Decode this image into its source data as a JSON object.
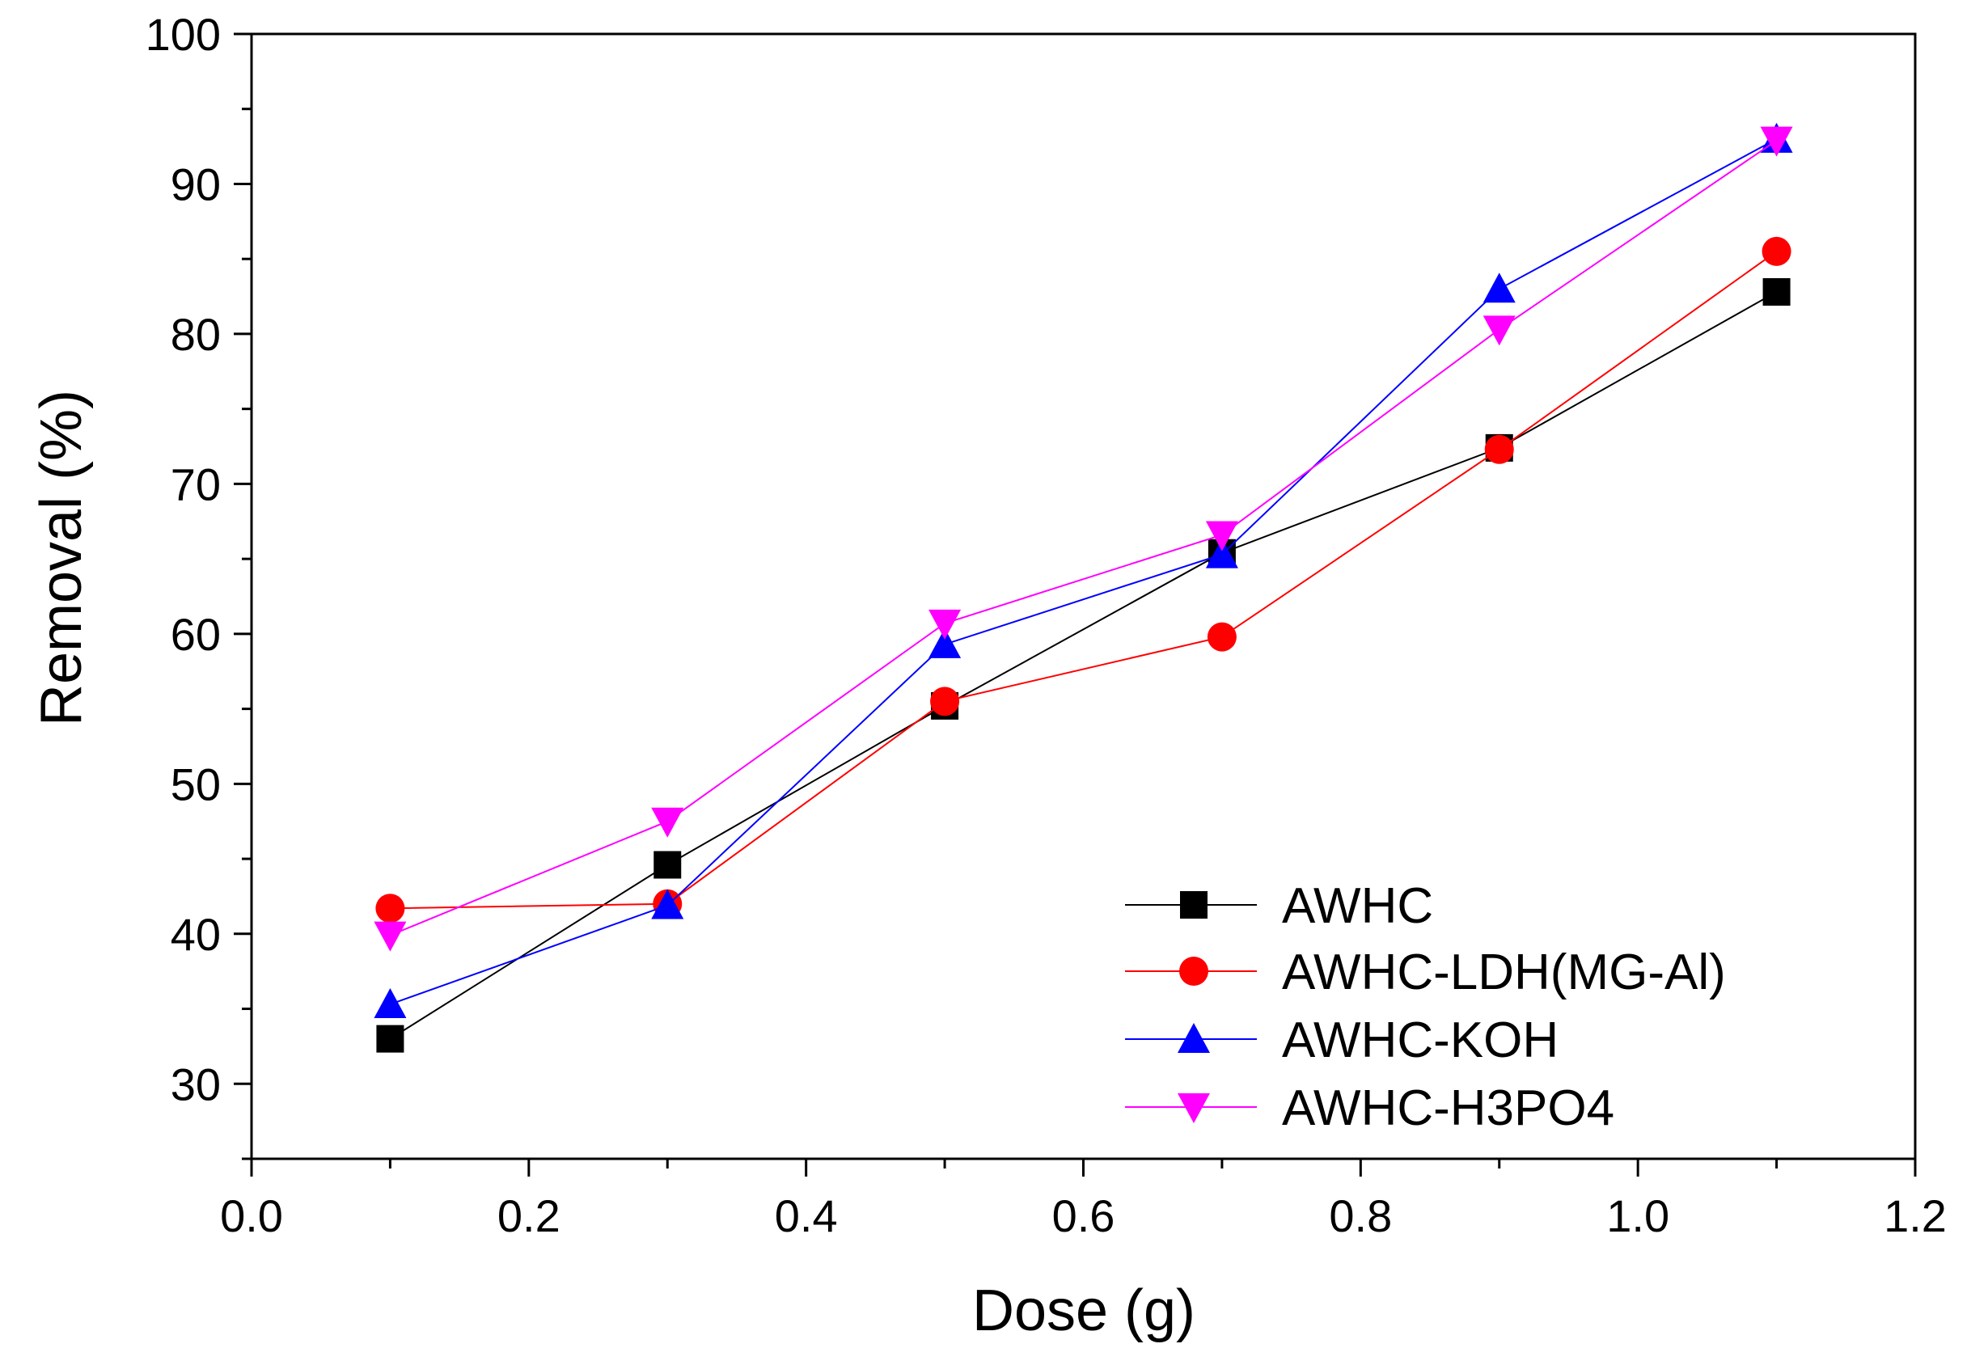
{
  "chart_data": {
    "type": "line",
    "title": "",
    "xlabel": "Dose (g)",
    "ylabel": "Removal (%)",
    "xlim": [
      0.0,
      1.2
    ],
    "ylim": [
      25,
      100
    ],
    "xticks": [
      "0.0",
      "0.2",
      "0.4",
      "0.6",
      "0.8",
      "1.0",
      "1.2"
    ],
    "yticks": [
      "30",
      "40",
      "50",
      "60",
      "70",
      "80",
      "90",
      "100"
    ],
    "grid": false,
    "legend_position": "bottom-right",
    "x": [
      0.1,
      0.3,
      0.5,
      0.7,
      0.9,
      1.1
    ],
    "series": [
      {
        "name": "AWHC",
        "color": "#000000",
        "marker": "square",
        "values": [
          33.0,
          44.6,
          55.2,
          65.4,
          72.4,
          82.8
        ]
      },
      {
        "name": "AWHC-LDH(MG-Al)",
        "color": "#ff0000",
        "marker": "circle",
        "values": [
          41.7,
          42.0,
          55.5,
          59.8,
          72.3,
          85.5
        ]
      },
      {
        "name": "AWHC-KOH",
        "color": "#0000ff",
        "marker": "triangle-up",
        "values": [
          35.3,
          41.9,
          59.3,
          65.3,
          83.0,
          93.0
        ]
      },
      {
        "name": "AWHC-H3PO4",
        "color": "#ff00ff",
        "marker": "triangle-down",
        "values": [
          39.9,
          47.5,
          60.7,
          66.6,
          80.3,
          92.9
        ]
      }
    ]
  }
}
